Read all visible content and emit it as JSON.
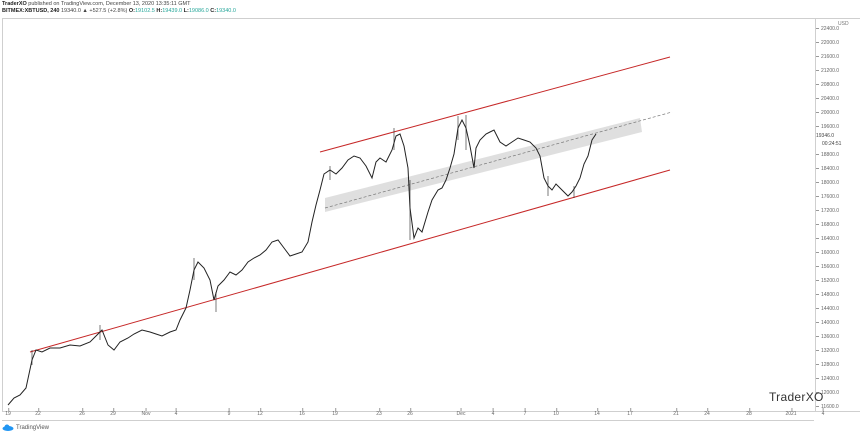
{
  "header": {
    "line1_author": "TraderXO",
    "line1_rest": " published on TradingView.com, December 13, 2020 13:35:11 GMT",
    "symbol": "BITMEX:XBTUSD, 240",
    "last": "19340.0",
    "change": "▲ +527.5 (+2.8%)",
    "o_label": "O:",
    "o_value": "19102.5",
    "h_label": "H:",
    "h_value": "19439.0",
    "l_label": "L:",
    "l_value": "19086.0",
    "c_label": "C:",
    "c_value": "19340.0"
  },
  "yaxis": {
    "title": "USD",
    "current_price": "19346.0",
    "countdown": "00:24:51"
  },
  "watermark": "TraderXO",
  "footer": {
    "logo_text": "TradingView"
  },
  "colors": {
    "channel": "#c62828",
    "candle": "#222222",
    "zone": "#d9d9d9",
    "midline": "#777777",
    "ohlc": "#26a69a"
  },
  "chart_data": {
    "type": "candlestick",
    "title": "BITMEX:XBTUSD, 240",
    "xlabel": "",
    "ylabel": "USD",
    "ylim": [
      11600,
      22400
    ],
    "yticks": [
      22400,
      22000,
      21600,
      21200,
      20800,
      20400,
      20000,
      19600,
      18800,
      18400,
      18000,
      17600,
      17200,
      16800,
      16400,
      16000,
      15600,
      15200,
      14800,
      14400,
      14000,
      13600,
      13200,
      12800,
      12400,
      12000,
      11600
    ],
    "xticks": [
      "19",
      "22",
      "26",
      "29",
      "Nov",
      "4",
      "9",
      "12",
      "16",
      "19",
      "23",
      "26",
      "Dec",
      "4",
      "7",
      "10",
      "14",
      "17",
      "21",
      "24",
      "28",
      "2021",
      "4"
    ],
    "grid": false,
    "legend": "none",
    "approx_closes": [
      {
        "date": "Oct 19",
        "price": 11700
      },
      {
        "date": "Oct 21",
        "price": 12900
      },
      {
        "date": "Oct 26",
        "price": 13100
      },
      {
        "date": "Oct 28",
        "price": 13500
      },
      {
        "date": "Nov 2",
        "price": 13500
      },
      {
        "date": "Nov 5",
        "price": 15600
      },
      {
        "date": "Nov 9",
        "price": 15300
      },
      {
        "date": "Nov 12",
        "price": 16200
      },
      {
        "date": "Nov 16",
        "price": 16000
      },
      {
        "date": "Nov 18",
        "price": 17800
      },
      {
        "date": "Nov 21",
        "price": 18600
      },
      {
        "date": "Nov 24",
        "price": 19100
      },
      {
        "date": "Nov 26",
        "price": 16700
      },
      {
        "date": "Nov 29",
        "price": 18000
      },
      {
        "date": "Dec 1",
        "price": 19600
      },
      {
        "date": "Dec 4",
        "price": 19200
      },
      {
        "date": "Dec 7",
        "price": 19100
      },
      {
        "date": "Dec 9",
        "price": 18000
      },
      {
        "date": "Dec 11",
        "price": 17700
      },
      {
        "date": "Dec 13",
        "price": 19346
      }
    ],
    "annotations": [
      {
        "type": "trendline",
        "name": "upper-channel",
        "color": "#c62828"
      },
      {
        "type": "trendline",
        "name": "lower-channel",
        "color": "#c62828"
      },
      {
        "type": "dashed-line",
        "name": "channel-midline"
      },
      {
        "type": "rectangle",
        "name": "resistance-zone",
        "color": "#d9d9d9"
      }
    ],
    "current_price": 19346.0
  }
}
